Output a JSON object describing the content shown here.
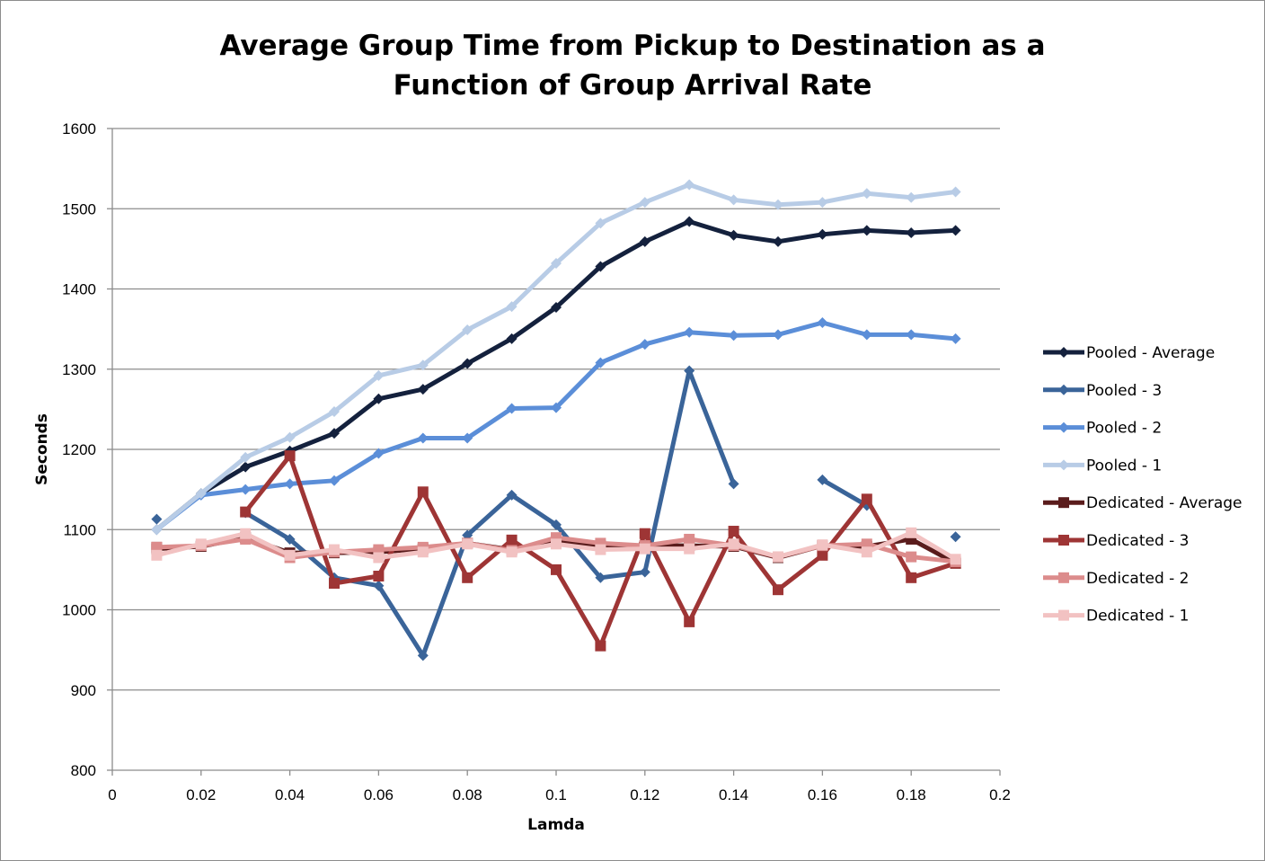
{
  "chart_data": {
    "type": "line",
    "title_lines": [
      "Average Group Time from Pickup to Destination as a",
      "Function of Group Arrival Rate"
    ],
    "xlabel": "Lamda",
    "ylabel": "Seconds",
    "xlim": [
      0,
      0.2
    ],
    "ylim": [
      800,
      1600
    ],
    "x_ticks": [
      "0",
      "0.02",
      "0.04",
      "0.06",
      "0.08",
      "0.1",
      "0.12",
      "0.14",
      "0.16",
      "0.18",
      "0.2"
    ],
    "y_ticks": [
      "800",
      "900",
      "1000",
      "1100",
      "1200",
      "1300",
      "1400",
      "1500",
      "1600"
    ],
    "grid": "horizontal",
    "legend_position": "right",
    "x": [
      0.01,
      0.02,
      0.03,
      0.04,
      0.05,
      0.06,
      0.07,
      0.08,
      0.09,
      0.1,
      0.11,
      0.12,
      0.13,
      0.14,
      0.15,
      0.16,
      0.17,
      0.18,
      0.19
    ],
    "series": [
      {
        "name": "Pooled - Average",
        "color": "#14213d",
        "marker": "diamond",
        "values": [
          1100,
          1145,
          1178,
          1198,
          1220,
          1263,
          1275,
          1307,
          1338,
          1377,
          1428,
          1459,
          1484,
          1467,
          1459,
          1468,
          1473,
          1470,
          1473
        ]
      },
      {
        "name": "Pooled - 3",
        "color": "#3a6499",
        "marker": "diamond",
        "values": [
          1113,
          null,
          1121,
          1088,
          1040,
          1030,
          943,
          1093,
          1143,
          1106,
          1040,
          1047,
          1298,
          1157,
          null,
          1162,
          1130,
          null,
          1091
        ]
      },
      {
        "name": "Pooled - 2",
        "color": "#5b8ed8",
        "marker": "diamond",
        "values": [
          1100,
          1143,
          1150,
          1157,
          1161,
          1195,
          1214,
          1214,
          1251,
          1252,
          1308,
          1331,
          1346,
          1342,
          1343,
          1358,
          1343,
          1343,
          1338
        ]
      },
      {
        "name": "Pooled - 1",
        "color": "#b8cce6",
        "marker": "diamond",
        "values": [
          1100,
          1145,
          1190,
          1215,
          1247,
          1292,
          1305,
          1349,
          1378,
          1432,
          1482,
          1508,
          1530,
          1511,
          1505,
          1508,
          1519,
          1514,
          1521
        ]
      },
      {
        "name": "Dedicated - Average",
        "color": "#5a1c1c",
        "marker": "square",
        "values": [
          1076,
          1079,
          1090,
          1071,
          1071,
          1072,
          1076,
          1083,
          1075,
          1085,
          1080,
          1080,
          1080,
          1079,
          1065,
          1080,
          1079,
          1088,
          1058
        ]
      },
      {
        "name": "Dedicated - 3",
        "color": "#9e3535",
        "marker": "square",
        "values": [
          1078,
          null,
          1122,
          1192,
          1033,
          1042,
          1147,
          1040,
          1087,
          1050,
          955,
          1095,
          985,
          1098,
          1025,
          1068,
          1138,
          1040,
          1058
        ]
      },
      {
        "name": "Dedicated - 2",
        "color": "#dc8c8c",
        "marker": "square",
        "values": [
          1078,
          1080,
          1088,
          1065,
          1072,
          1075,
          1078,
          1083,
          1074,
          1090,
          1083,
          1080,
          1088,
          1080,
          1066,
          1080,
          1082,
          1066,
          1060
        ]
      },
      {
        "name": "Dedicated - 1",
        "color": "#f2c2c2",
        "marker": "square",
        "values": [
          1068,
          1082,
          1095,
          1068,
          1075,
          1065,
          1072,
          1082,
          1072,
          1082,
          1075,
          1076,
          1076,
          1082,
          1066,
          1081,
          1072,
          1096,
          1063
        ]
      }
    ]
  }
}
